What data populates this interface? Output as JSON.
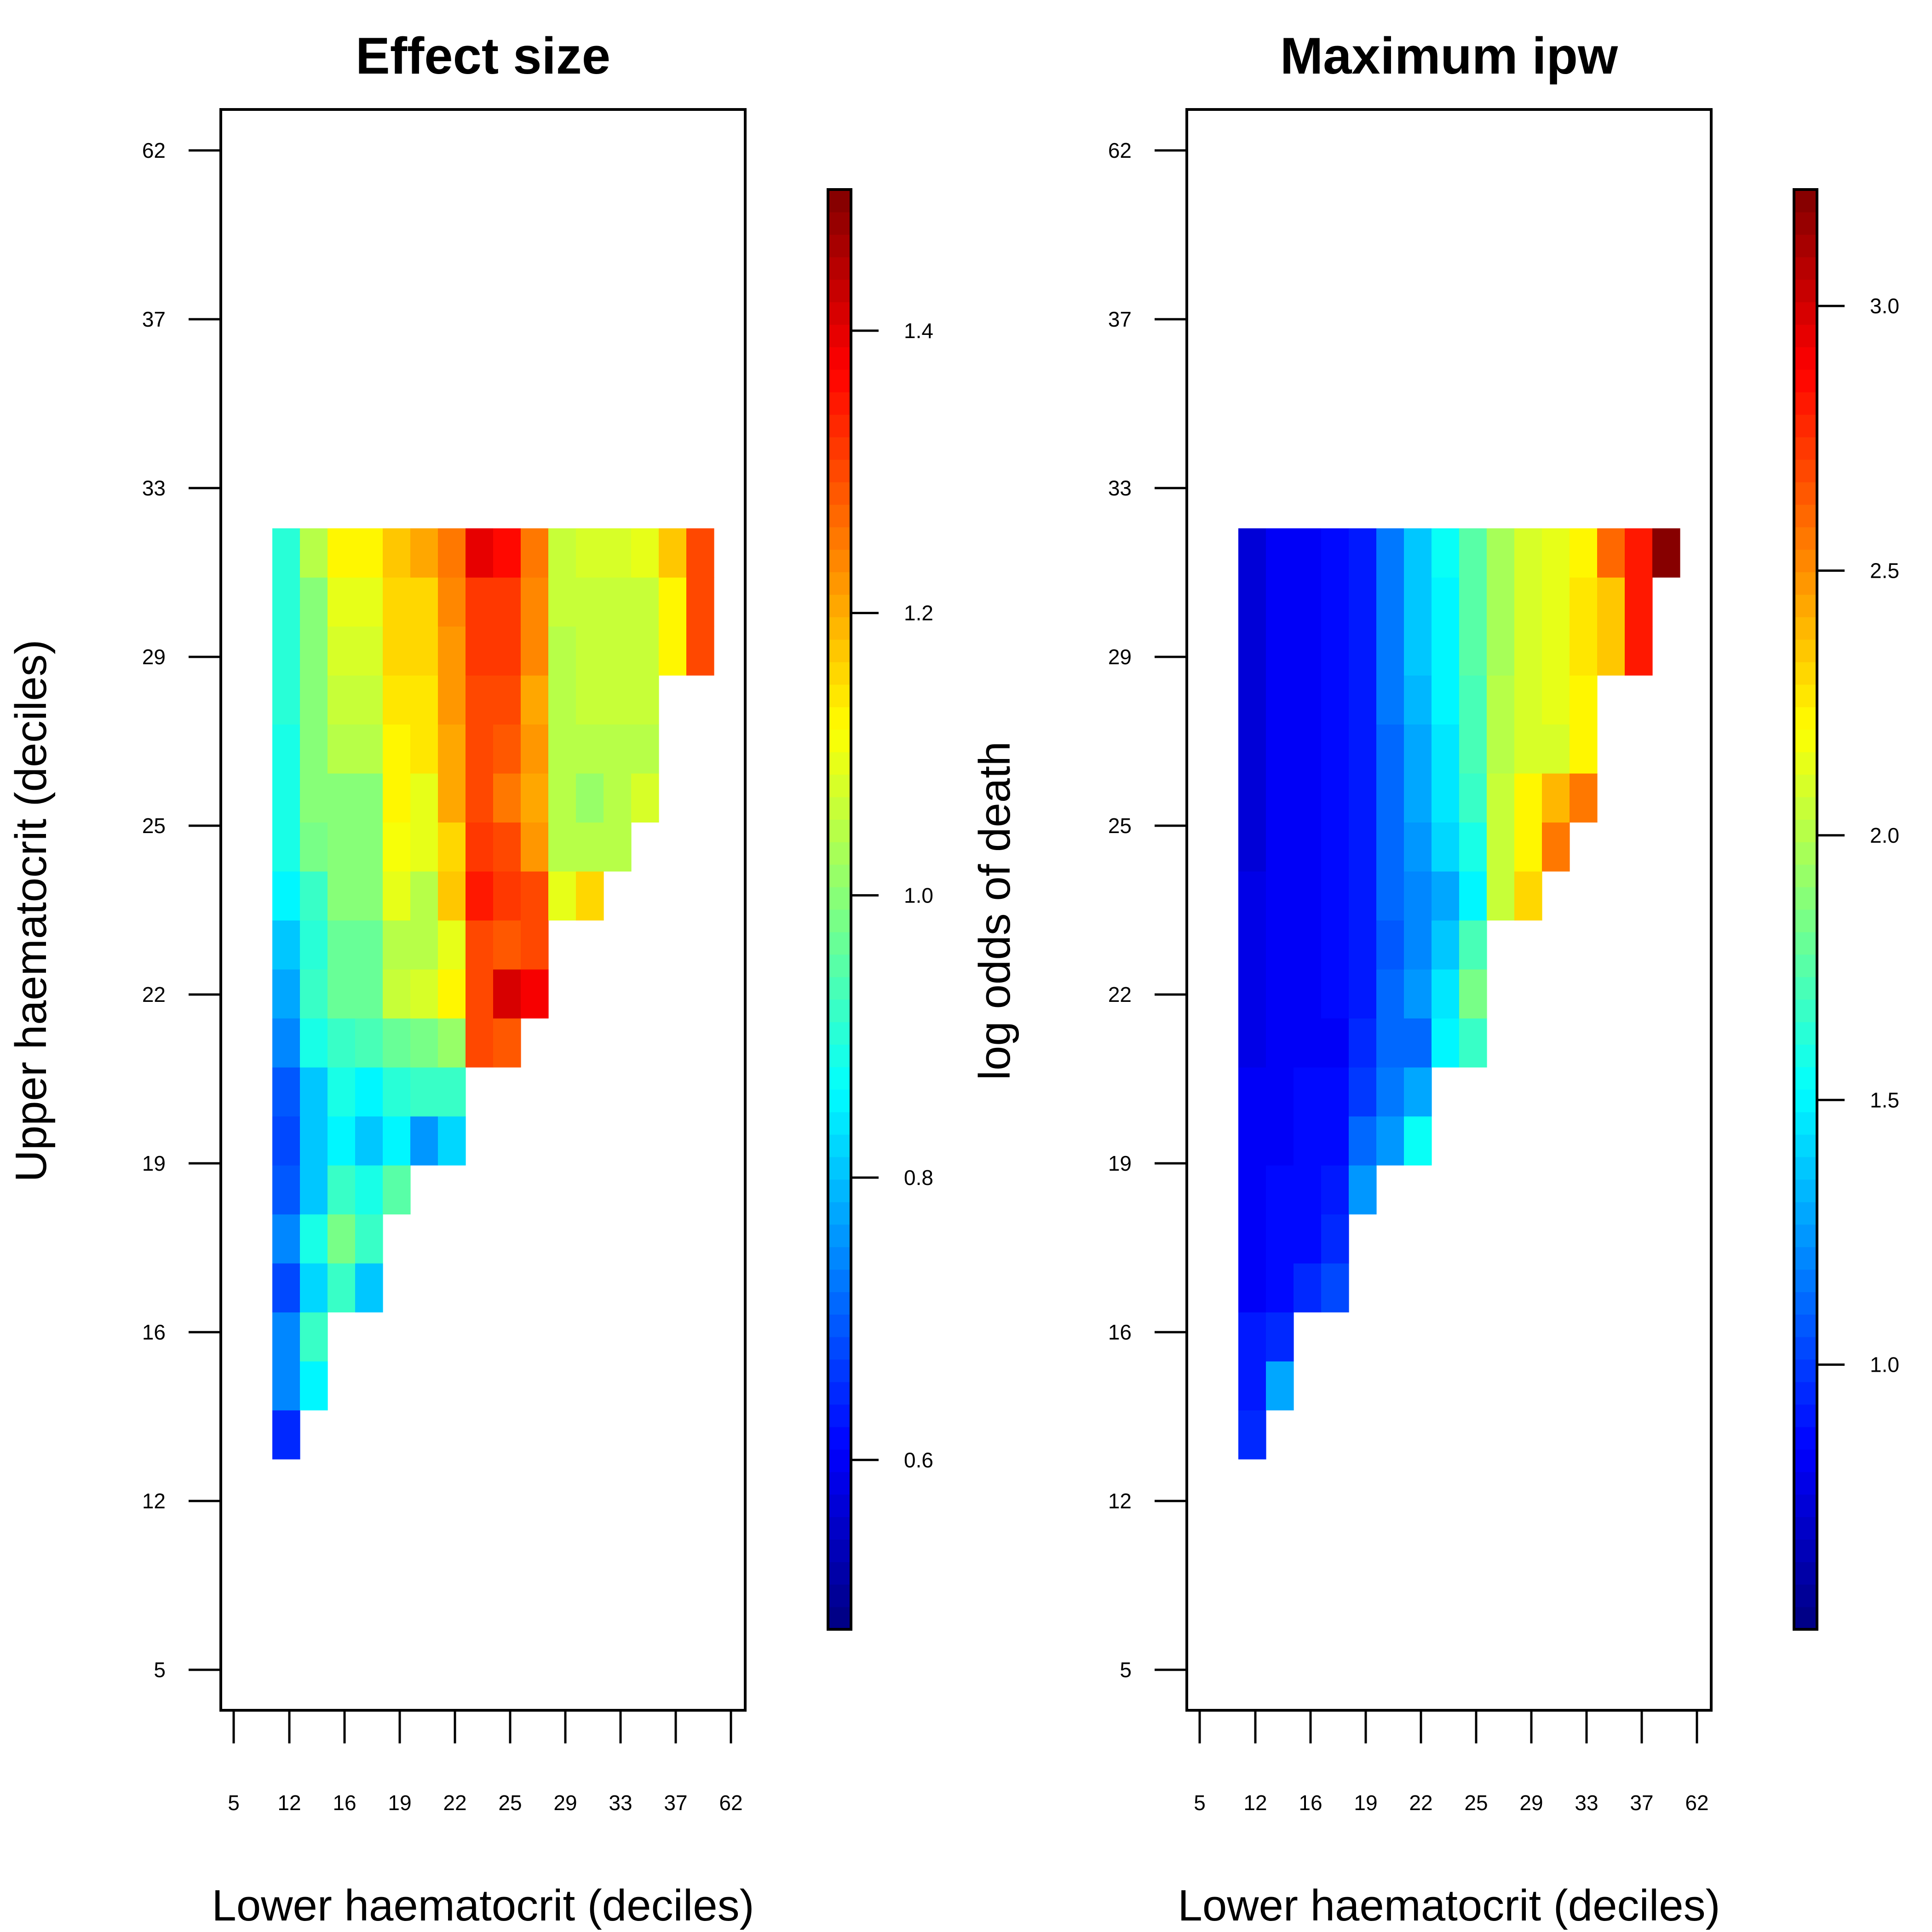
{
  "chart_data": [
    {
      "type": "heatmap",
      "title": "Effect size",
      "xlabel": "Lower haematocrit (deciles)",
      "ylabel": "Upper haematocrit (deciles)",
      "colorbar_label": "log odds of death",
      "x_tick_labels": [
        "5",
        "12",
        "16",
        "19",
        "22",
        "25",
        "29",
        "33",
        "37",
        "62"
      ],
      "y_tick_labels": [
        "5",
        "12",
        "16",
        "19",
        "22",
        "25",
        "29",
        "33",
        "37",
        "62"
      ],
      "colorbar_range": [
        0.48,
        1.5
      ],
      "colorbar_ticks": [
        0.6,
        0.8,
        1.0,
        1.2,
        1.4
      ],
      "colorbar_tick_labels": [
        "0.6",
        "0.8",
        "1.0",
        "1.2",
        "1.4"
      ],
      "colormap": "jet",
      "grid": false,
      "cell_rows_note": "rows from upper=14 (bottom) to upper=34 (top); each row lists values for lower=1..n",
      "rows": [
        [
          0.65
        ],
        [
          0.75,
          0.85
        ],
        [
          0.75,
          0.92
        ],
        [
          0.68,
          0.83,
          0.92,
          0.8
        ],
        [
          0.75,
          0.88,
          0.98,
          0.92
        ],
        [
          0.7,
          0.8,
          0.92,
          0.88,
          0.95
        ],
        [
          0.68,
          0.8,
          0.85,
          0.8,
          0.85,
          0.76,
          0.83
        ],
        [
          0.69,
          0.8,
          0.88,
          0.86,
          0.9,
          0.92,
          0.92
        ],
        [
          0.75,
          0.88,
          0.92,
          0.94,
          0.96,
          0.98,
          1.02,
          1.3,
          1.28
        ],
        [
          0.78,
          0.92,
          0.96,
          0.96,
          1.06,
          1.07,
          1.12,
          1.3,
          1.42,
          1.38
        ],
        [
          0.8,
          0.9,
          0.96,
          0.96,
          1.04,
          1.04,
          1.1,
          1.3,
          1.28,
          1.3
        ],
        [
          0.85,
          0.92,
          1.0,
          1.0,
          1.1,
          1.05,
          1.18,
          1.35,
          1.32,
          1.3,
          1.1,
          1.15
        ],
        [
          0.88,
          0.98,
          1.0,
          1.0,
          1.11,
          1.09,
          1.16,
          1.32,
          1.3,
          1.22,
          1.04,
          1.04,
          1.04
        ],
        [
          0.88,
          1.0,
          1.0,
          1.0,
          1.12,
          1.1,
          1.2,
          1.3,
          1.26,
          1.2,
          1.04,
          1.02,
          1.04,
          1.08
        ],
        [
          0.88,
          1.0,
          1.04,
          1.04,
          1.12,
          1.14,
          1.2,
          1.3,
          1.28,
          1.22,
          1.04,
          1.04,
          1.04,
          1.04
        ],
        [
          0.9,
          1.0,
          1.06,
          1.06,
          1.14,
          1.14,
          1.22,
          1.3,
          1.3,
          1.2,
          1.04,
          1.06,
          1.06,
          1.06
        ],
        [
          0.9,
          1.0,
          1.08,
          1.08,
          1.16,
          1.16,
          1.22,
          1.32,
          1.32,
          1.24,
          1.04,
          1.06,
          1.06,
          1.06,
          1.12,
          1.3
        ],
        [
          0.9,
          1.0,
          1.1,
          1.1,
          1.16,
          1.16,
          1.24,
          1.32,
          1.32,
          1.24,
          1.06,
          1.06,
          1.06,
          1.06,
          1.12,
          1.3
        ],
        [
          0.9,
          1.04,
          1.12,
          1.12,
          1.18,
          1.2,
          1.26,
          1.4,
          1.36,
          1.26,
          1.06,
          1.08,
          1.08,
          1.1,
          1.18,
          1.3
        ]
      ]
    },
    {
      "type": "heatmap",
      "title": "Maximum ipw",
      "xlabel": "Lower haematocrit (deciles)",
      "x_tick_labels": [
        "5",
        "12",
        "16",
        "19",
        "22",
        "25",
        "29",
        "33",
        "37",
        "62"
      ],
      "y_tick_labels": [
        "5",
        "12",
        "16",
        "19",
        "22",
        "25",
        "29",
        "33",
        "37",
        "62"
      ],
      "colorbar_range": [
        0.5,
        3.22
      ],
      "colorbar_ticks": [
        1.0,
        1.5,
        2.0,
        2.5,
        3.0
      ],
      "colorbar_tick_labels": [
        "1.0",
        "1.5",
        "2.0",
        "2.5",
        "3.0"
      ],
      "colormap": "jet",
      "grid": false,
      "cell_rows_note": "rows from upper=14 (bottom) to upper=34 (top); each row lists values for lower=1..n",
      "rows": [
        [
          0.95
        ],
        [
          0.9,
          1.3
        ],
        [
          0.9,
          0.95
        ],
        [
          0.82,
          0.85,
          0.95,
          1.05
        ],
        [
          0.82,
          0.88,
          0.88,
          0.95
        ],
        [
          0.82,
          0.85,
          0.88,
          0.9,
          1.25
        ],
        [
          0.8,
          0.82,
          0.86,
          0.88,
          1.1,
          1.25,
          1.55
        ],
        [
          0.8,
          0.82,
          0.85,
          0.88,
          0.98,
          1.15,
          1.3
        ],
        [
          0.78,
          0.8,
          0.82,
          0.84,
          0.95,
          1.1,
          1.12,
          1.5,
          1.65
        ],
        [
          0.78,
          0.8,
          0.82,
          0.85,
          0.9,
          1.12,
          1.25,
          1.45,
          1.85
        ],
        [
          0.76,
          0.8,
          0.82,
          0.85,
          0.9,
          1.08,
          1.2,
          1.35,
          1.7
        ],
        [
          0.76,
          0.8,
          0.82,
          0.85,
          0.9,
          1.1,
          1.2,
          1.3,
          1.5,
          2.05,
          2.3
        ],
        [
          0.74,
          0.8,
          0.82,
          0.85,
          0.9,
          1.1,
          1.25,
          1.4,
          1.6,
          2.05,
          2.2,
          2.55
        ],
        [
          0.74,
          0.8,
          0.82,
          0.85,
          0.9,
          1.12,
          1.3,
          1.45,
          1.65,
          2.05,
          2.2,
          2.4,
          2.55
        ],
        [
          0.74,
          0.8,
          0.82,
          0.85,
          0.92,
          1.12,
          1.3,
          1.45,
          1.7,
          2.0,
          2.1,
          2.1,
          2.2
        ],
        [
          0.72,
          0.8,
          0.82,
          0.85,
          0.92,
          1.14,
          1.32,
          1.48,
          1.7,
          2.0,
          2.1,
          2.12,
          2.22
        ],
        [
          0.72,
          0.8,
          0.82,
          0.85,
          0.92,
          1.15,
          1.35,
          1.5,
          1.75,
          1.95,
          2.1,
          2.15,
          2.25,
          2.35,
          2.8
        ],
        [
          0.72,
          0.8,
          0.82,
          0.85,
          0.92,
          1.15,
          1.35,
          1.5,
          1.75,
          1.95,
          2.1,
          2.15,
          2.25,
          2.35,
          2.8
        ],
        [
          0.72,
          0.8,
          0.82,
          0.85,
          0.92,
          1.18,
          1.38,
          1.55,
          1.75,
          1.98,
          2.1,
          2.15,
          2.2,
          2.6,
          2.8,
          3.22
        ]
      ]
    }
  ]
}
